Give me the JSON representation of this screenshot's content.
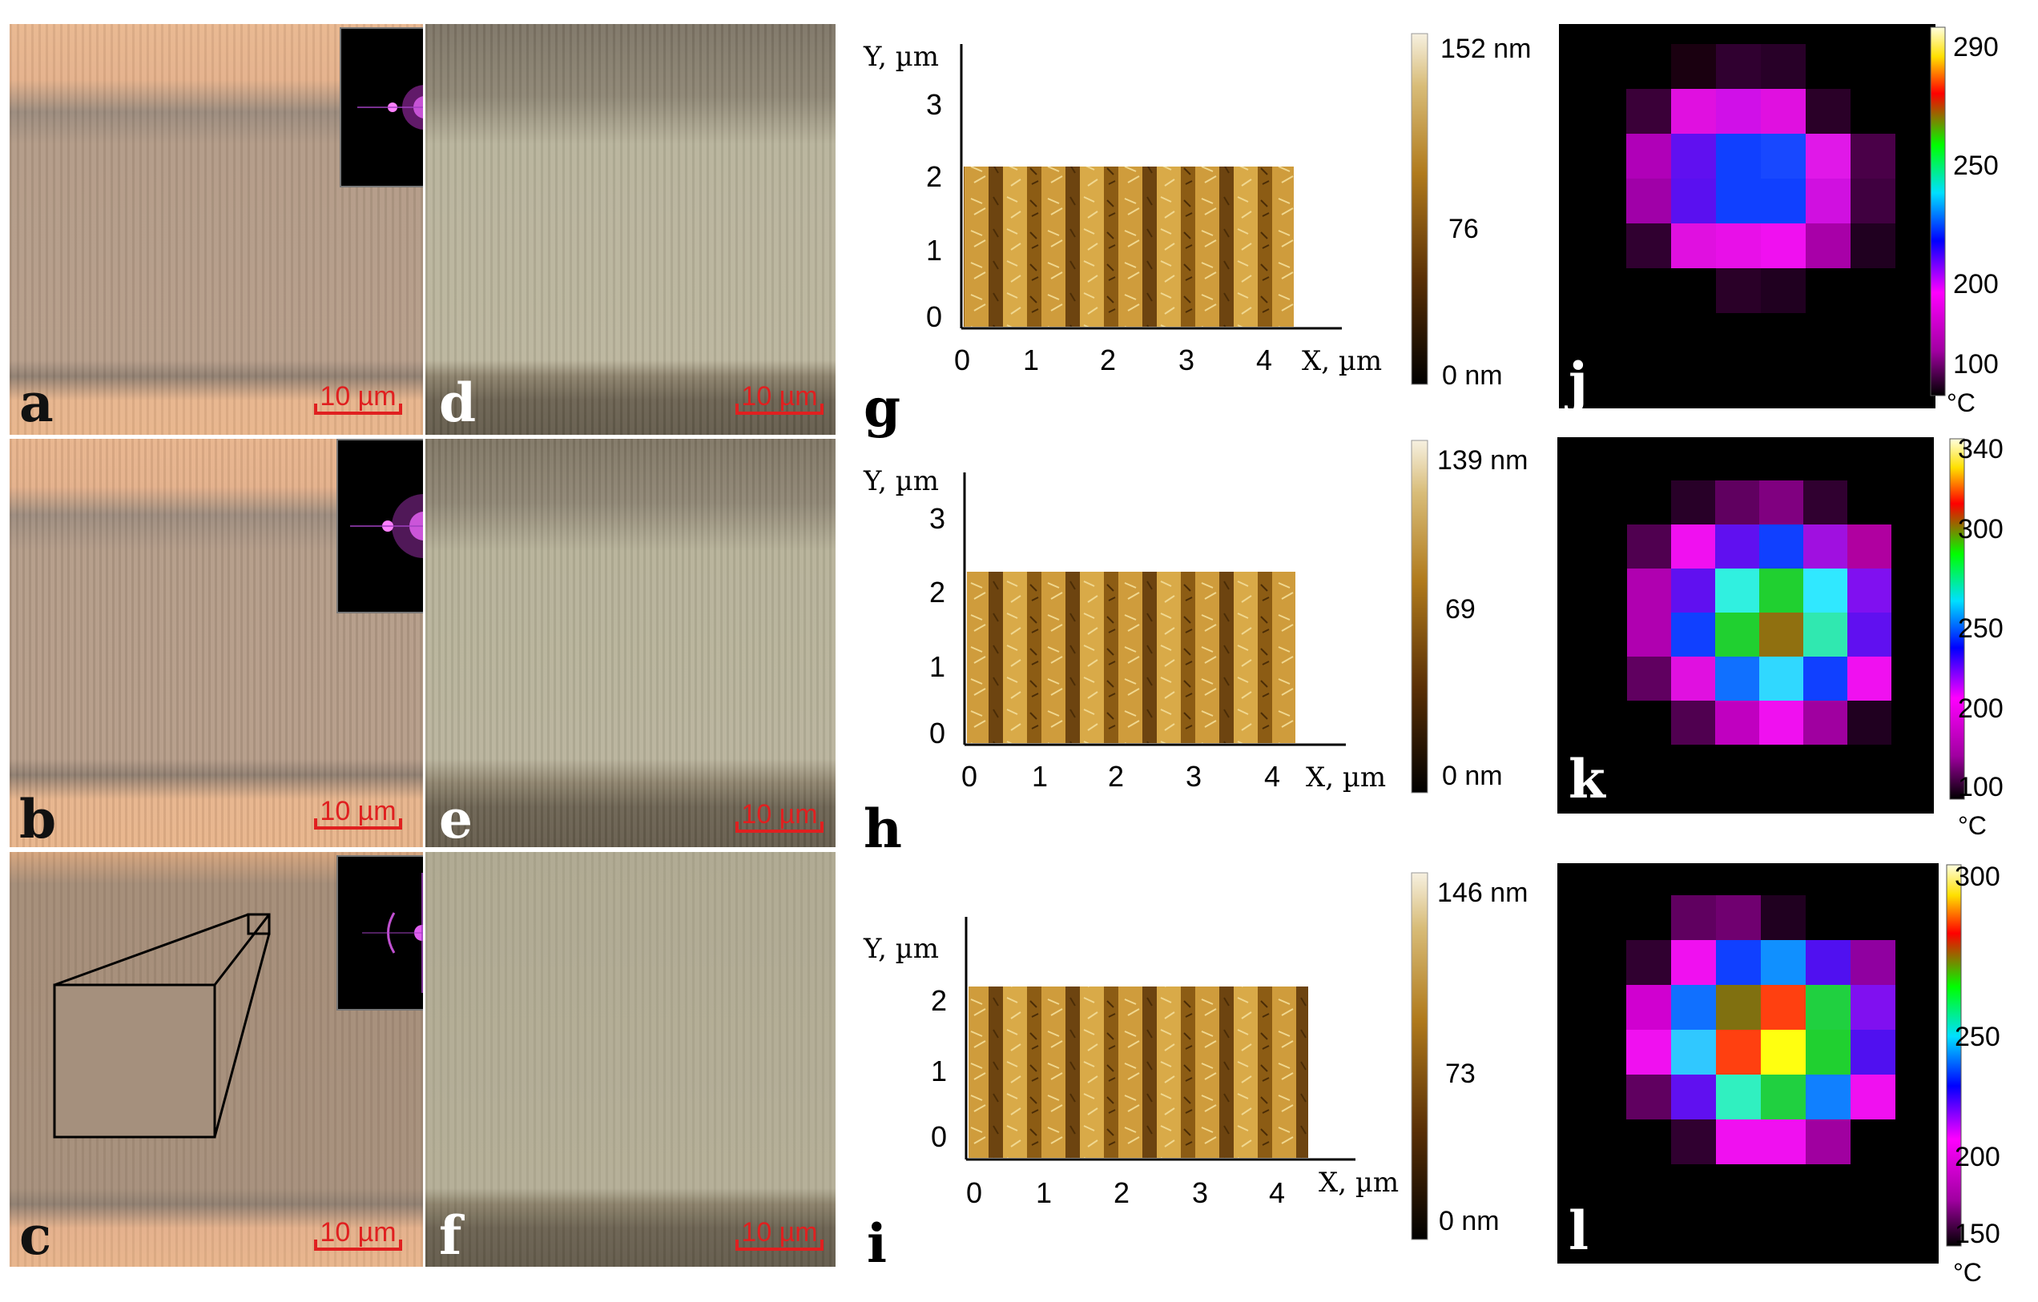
{
  "optical": {
    "scale_label": "10 µm",
    "panels": [
      {
        "id": "a",
        "label": "a"
      },
      {
        "id": "b",
        "label": "b"
      },
      {
        "id": "c",
        "label": "c"
      },
      {
        "id": "d",
        "label": "d"
      },
      {
        "id": "e",
        "label": "e"
      },
      {
        "id": "f",
        "label": "f"
      }
    ]
  },
  "afm": [
    {
      "label": "g",
      "ylabel": "Y, µm",
      "xlabel": "X, µm",
      "yticks": [
        "0",
        "1",
        "2",
        "3"
      ],
      "xticks": [
        "0",
        "1",
        "2",
        "3",
        "4"
      ],
      "colorbar": {
        "max": "152 nm",
        "mid": "76",
        "min": "0 nm"
      }
    },
    {
      "label": "h",
      "ylabel": "Y, µm",
      "xlabel": "X, µm",
      "yticks": [
        "0",
        "1",
        "2",
        "3"
      ],
      "xticks": [
        "0",
        "1",
        "2",
        "3",
        "4"
      ],
      "colorbar": {
        "max": "139 nm",
        "mid": "69",
        "min": "0 nm"
      }
    },
    {
      "label": "i",
      "ylabel": "Y, µm",
      "xlabel": "X, µm",
      "yticks": [
        "0",
        "1",
        "2"
      ],
      "xticks": [
        "0",
        "1",
        "2",
        "3",
        "4"
      ],
      "colorbar": {
        "max": "146 nm",
        "mid": "73",
        "min": "0 nm"
      }
    }
  ],
  "thermal": [
    {
      "label": "j",
      "unit": "°C",
      "ticks": [
        "290",
        "250",
        "200",
        "100"
      ]
    },
    {
      "label": "k",
      "unit": "°C",
      "ticks": [
        "340",
        "300",
        "250",
        "200",
        "100"
      ]
    },
    {
      "label": "l",
      "unit": "°C",
      "ticks": [
        "300",
        "250",
        "200",
        "150"
      ]
    }
  ],
  "colors": {
    "optical_bright": "#e8b48a",
    "optical_mid": "#b99a80",
    "optical_right_bright": "#b8b49a",
    "optical_right_dark": "#6b6250",
    "afm_light": "#d8a840",
    "afm_dark": "#5a3a08"
  }
}
